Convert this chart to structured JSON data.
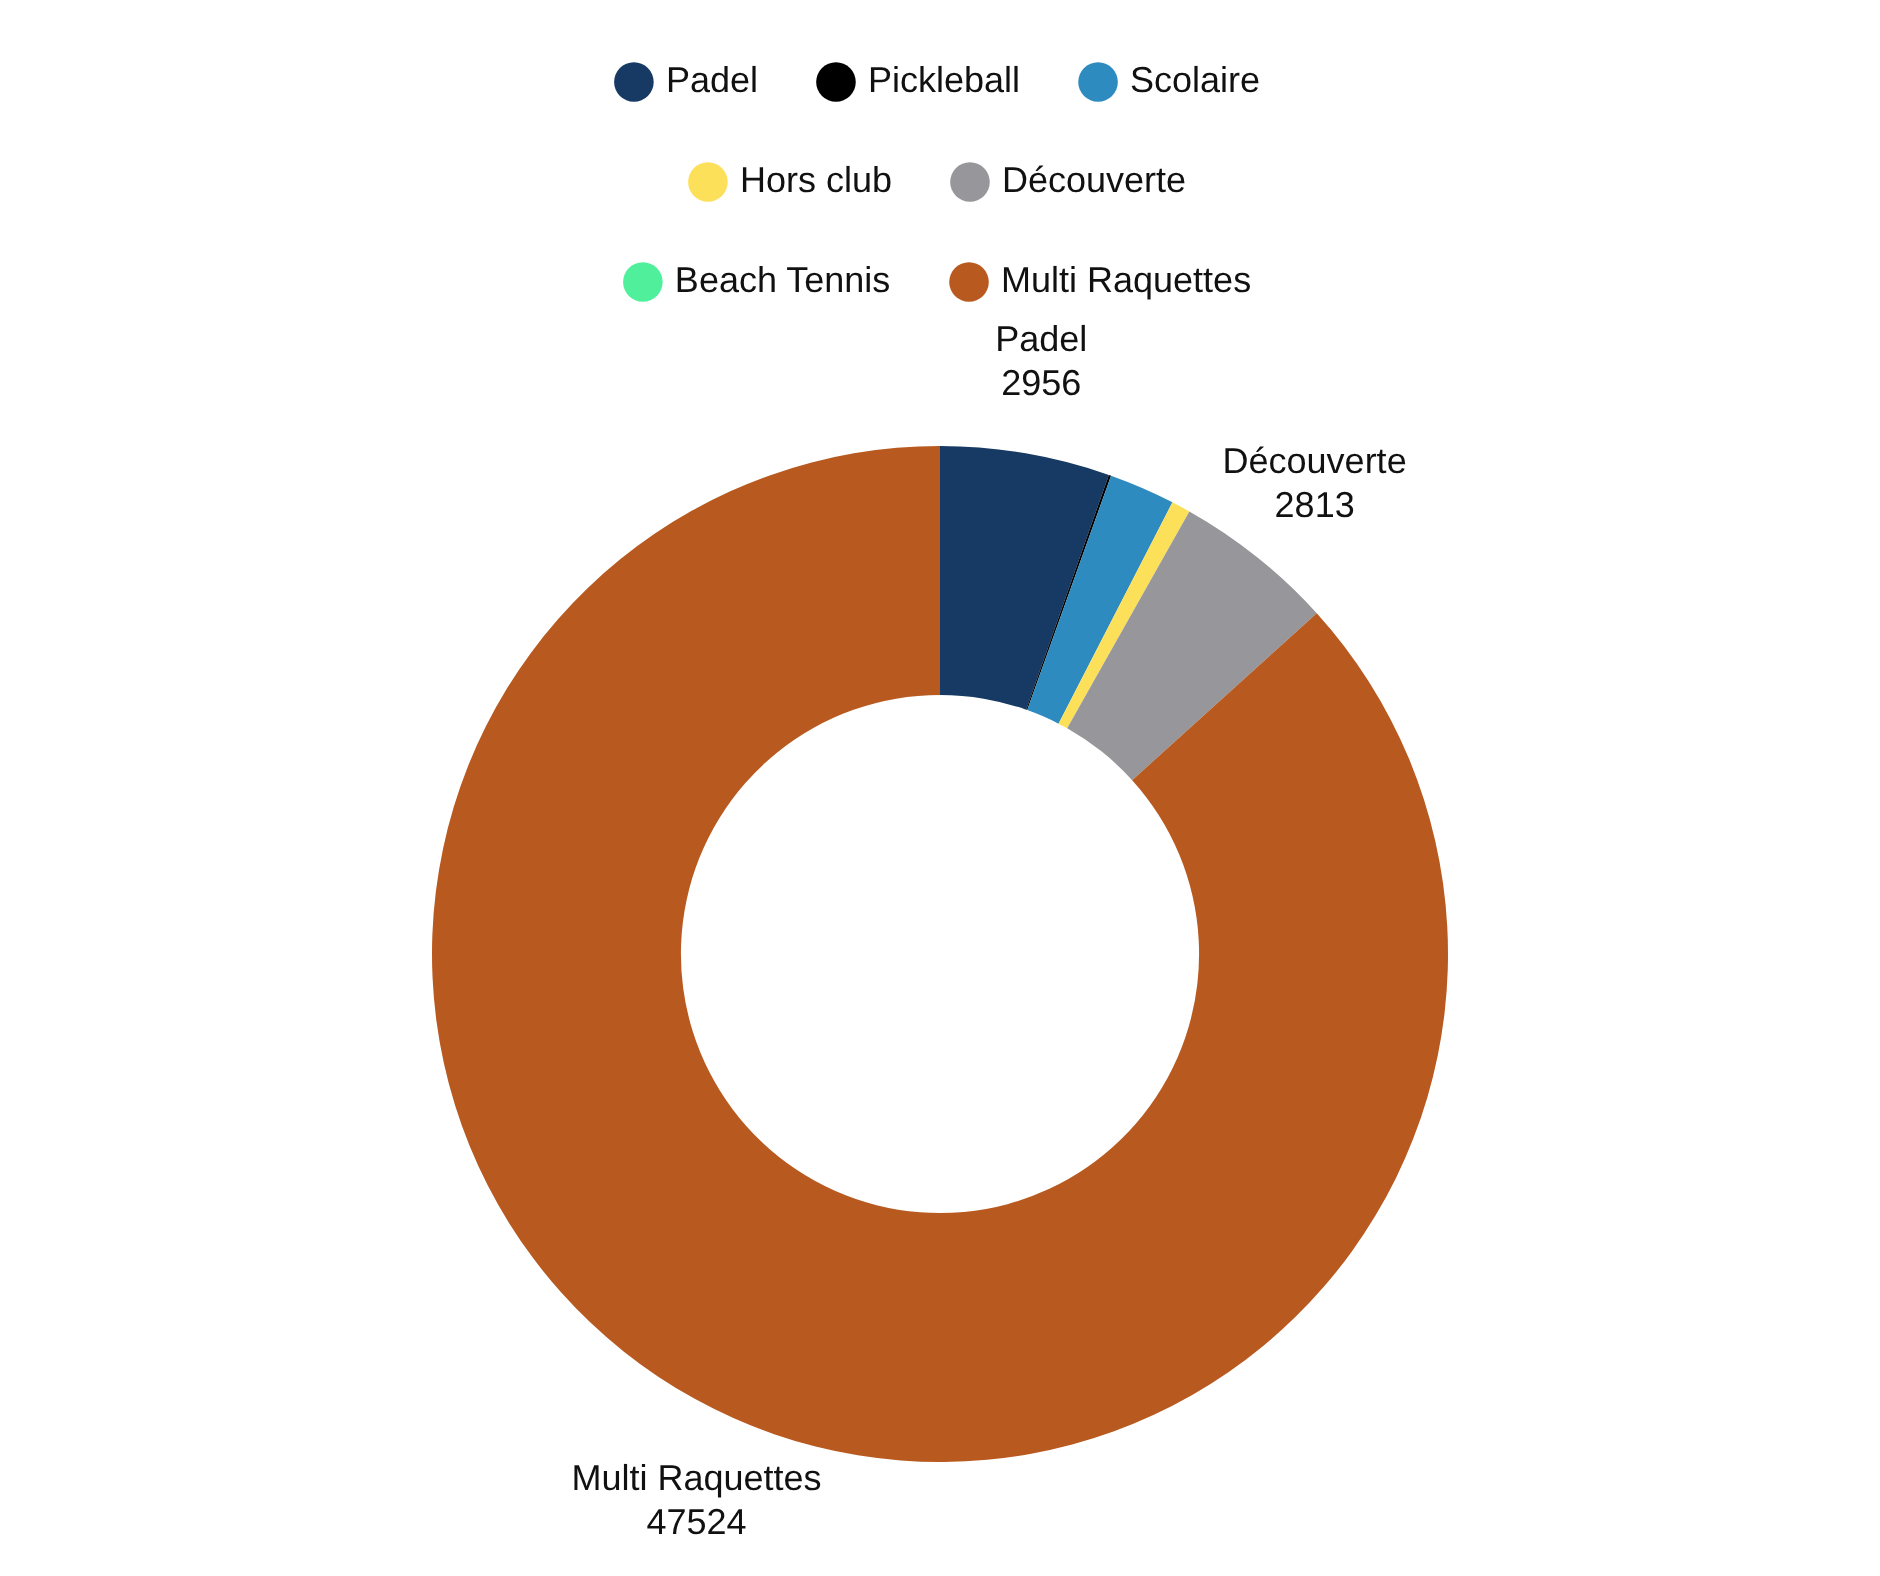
{
  "chart_data": {
    "type": "donut",
    "categories": [
      "Padel",
      "Pickleball",
      "Scolaire",
      "Hors club",
      "Découverte",
      "Beach Tennis",
      "Multi Raquettes"
    ],
    "values": [
      2956,
      40,
      1150,
      330,
      2813,
      0,
      47524
    ],
    "colors": [
      "#173a64",
      "#000000",
      "#2e8bc0",
      "#fde05a",
      "#97979b",
      "#50ef9c",
      "#b8591f"
    ],
    "value_labels": [
      "2956",
      null,
      null,
      null,
      "2813",
      null,
      "47524"
    ],
    "legend": "top"
  }
}
